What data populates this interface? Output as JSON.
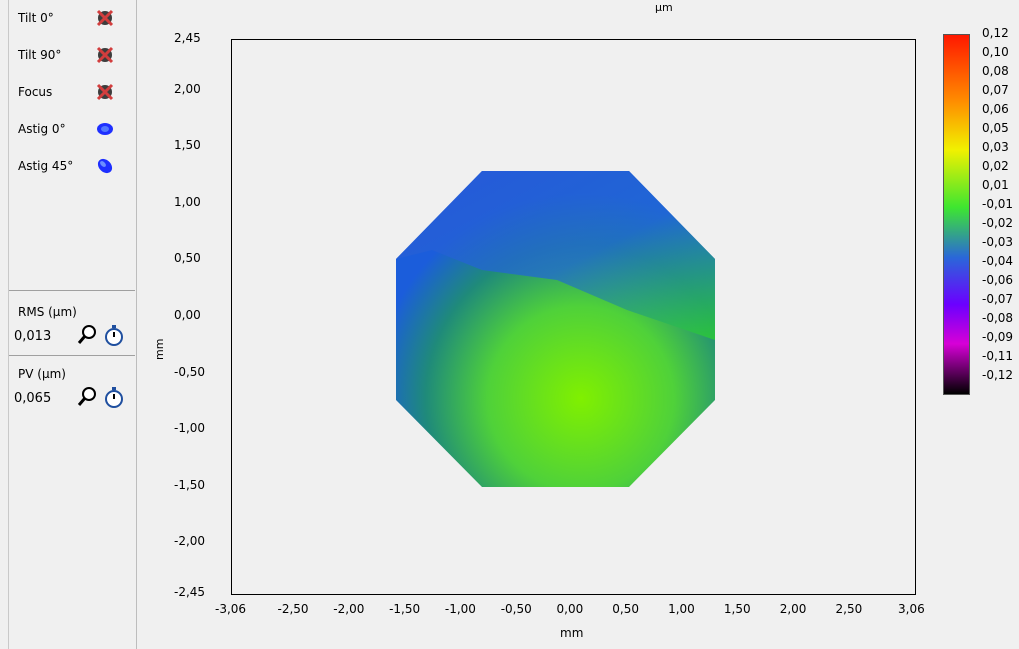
{
  "unit_title": "µm",
  "terms": [
    {
      "label": "Tilt 0°",
      "icon": "disabled-term-icon"
    },
    {
      "label": "Tilt 90°",
      "icon": "disabled-term-icon"
    },
    {
      "label": "Focus",
      "icon": "disabled-term-icon"
    },
    {
      "label": "Astig 0°",
      "icon": "astig-0-icon"
    },
    {
      "label": "Astig 45°",
      "icon": "astig-45-icon"
    }
  ],
  "rms": {
    "title": "RMS (µm)",
    "value": "0,013"
  },
  "pv": {
    "title": "PV (µm)",
    "value": "0,065"
  },
  "axes": {
    "xlabel": "mm",
    "ylabel": "mm",
    "xticks": [
      "-3,06",
      "-2,50",
      "-2,00",
      "-1,50",
      "-1,00",
      "-0,50",
      "0,00",
      "0,50",
      "1,00",
      "1,50",
      "2,00",
      "2,50",
      "3,06"
    ],
    "yticks": [
      "2,45",
      "2,00",
      "1,50",
      "1,00",
      "0,50",
      "0,00",
      "-0,50",
      "-1,00",
      "-1,50",
      "-2,00",
      "-2,45"
    ]
  },
  "colorbar_labels": [
    "0,12",
    "0,10",
    "0,08",
    "0,07",
    "0,06",
    "0,05",
    "0,03",
    "0,02",
    "0,01",
    "-0,01",
    "-0,02",
    "-0,03",
    "-0,04",
    "-0,06",
    "-0,07",
    "-0,08",
    "-0,09",
    "-0,11",
    "-0,12"
  ],
  "chart_data": {
    "type": "heatmap",
    "xlim": [
      -3.06,
      3.06
    ],
    "ylim": [
      -2.45,
      2.45
    ],
    "color_range": [
      -0.12,
      0.12
    ],
    "note": "wavefront height map over octagonal aperture"
  }
}
